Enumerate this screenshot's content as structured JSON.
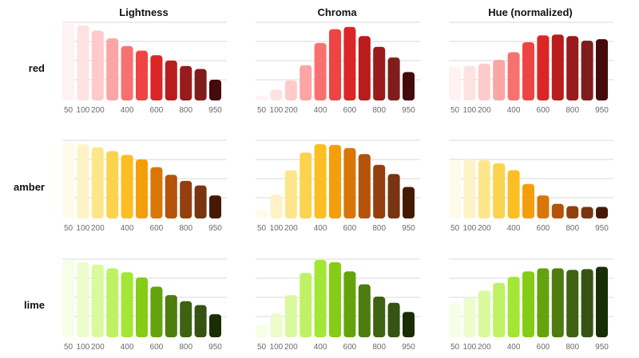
{
  "columns": [
    "Lightness",
    "Chroma",
    "Hue (normalized)"
  ],
  "rows": [
    "red",
    "amber",
    "lime"
  ],
  "chart_data": {
    "type": "bar",
    "layout": "grid of 3 rows x 3 columns (small multiples)",
    "grid": true,
    "ylim": [
      0,
      1
    ],
    "categories": [
      "50",
      "100",
      "200",
      "300",
      "400",
      "500",
      "600",
      "700",
      "800",
      "900",
      "950"
    ],
    "tick_labels": [
      "50",
      "100",
      "200",
      "",
      "400",
      "",
      "600",
      "",
      "800",
      "",
      "950"
    ],
    "panels": [
      {
        "row": "red",
        "column": "Lightness",
        "values": [
          0.98,
          0.96,
          0.89,
          0.79,
          0.69,
          0.63,
          0.57,
          0.5,
          0.43,
          0.39,
          0.25
        ],
        "colors": [
          "#fef2f2",
          "#fee2e2",
          "#fecaca",
          "#fca5a5",
          "#f87171",
          "#ef4444",
          "#dc2626",
          "#b91c1c",
          "#991b1b",
          "#7f1d1d",
          "#450a0a"
        ]
      },
      {
        "row": "red",
        "column": "Chroma",
        "values": [
          0.04,
          0.12,
          0.24,
          0.44,
          0.73,
          0.91,
          0.94,
          0.82,
          0.68,
          0.54,
          0.35
        ],
        "colors": [
          "#fef2f2",
          "#fee2e2",
          "#fecaca",
          "#fca5a5",
          "#f87171",
          "#ef4444",
          "#dc2626",
          "#b91c1c",
          "#991b1b",
          "#7f1d1d",
          "#450a0a"
        ]
      },
      {
        "row": "red",
        "column": "Hue (normalized)",
        "values": [
          0.42,
          0.43,
          0.46,
          0.51,
          0.61,
          0.74,
          0.83,
          0.84,
          0.82,
          0.76,
          0.78
        ],
        "colors": [
          "#fef2f2",
          "#fee2e2",
          "#fecaca",
          "#fca5a5",
          "#f87171",
          "#ef4444",
          "#dc2626",
          "#b91c1c",
          "#991b1b",
          "#7f1d1d",
          "#450a0a"
        ]
      },
      {
        "row": "amber",
        "column": "Lightness",
        "values": [
          0.98,
          0.95,
          0.91,
          0.86,
          0.81,
          0.75,
          0.65,
          0.55,
          0.47,
          0.41,
          0.28
        ],
        "colors": [
          "#fffbeb",
          "#fef3c7",
          "#fde68a",
          "#fcd34d",
          "#fbbf24",
          "#f59e0b",
          "#d97706",
          "#b45309",
          "#92400e",
          "#78350f",
          "#451a03"
        ]
      },
      {
        "row": "amber",
        "column": "Chroma",
        "values": [
          0.1,
          0.29,
          0.61,
          0.84,
          0.95,
          0.94,
          0.9,
          0.82,
          0.68,
          0.56,
          0.39
        ],
        "colors": [
          "#fffbeb",
          "#fef3c7",
          "#fde68a",
          "#fcd34d",
          "#fbbf24",
          "#f59e0b",
          "#d97706",
          "#b45309",
          "#92400e",
          "#78350f",
          "#451a03"
        ]
      },
      {
        "row": "amber",
        "column": "Hue (normalized)",
        "values": [
          0.74,
          0.75,
          0.74,
          0.7,
          0.61,
          0.43,
          0.28,
          0.17,
          0.14,
          0.13,
          0.13
        ],
        "colors": [
          "#fffbeb",
          "#fef3c7",
          "#fde68a",
          "#fcd34d",
          "#fbbf24",
          "#f59e0b",
          "#d97706",
          "#b45309",
          "#92400e",
          "#78350f",
          "#451a03"
        ]
      },
      {
        "row": "lime",
        "column": "Lightness",
        "values": [
          0.98,
          0.96,
          0.93,
          0.88,
          0.83,
          0.76,
          0.64,
          0.53,
          0.45,
          0.4,
          0.28
        ],
        "colors": [
          "#f7fee7",
          "#ecfccb",
          "#d9f99d",
          "#bef264",
          "#a3e635",
          "#84cc16",
          "#65a30d",
          "#4d7c0f",
          "#3f6212",
          "#365314",
          "#1a2e05"
        ]
      },
      {
        "row": "lime",
        "column": "Chroma",
        "values": [
          0.14,
          0.29,
          0.53,
          0.82,
          0.99,
          0.96,
          0.84,
          0.67,
          0.51,
          0.43,
          0.31
        ],
        "colors": [
          "#f7fee7",
          "#ecfccb",
          "#d9f99d",
          "#bef264",
          "#a3e635",
          "#84cc16",
          "#65a30d",
          "#4d7c0f",
          "#3f6212",
          "#365314",
          "#1a2e05"
        ]
      },
      {
        "row": "lime",
        "column": "Hue (normalized)",
        "values": [
          0.43,
          0.5,
          0.59,
          0.69,
          0.77,
          0.84,
          0.88,
          0.88,
          0.86,
          0.87,
          0.9
        ],
        "colors": [
          "#f7fee7",
          "#ecfccb",
          "#d9f99d",
          "#bef264",
          "#a3e635",
          "#84cc16",
          "#65a30d",
          "#4d7c0f",
          "#3f6212",
          "#365314",
          "#1a2e05"
        ]
      }
    ]
  }
}
